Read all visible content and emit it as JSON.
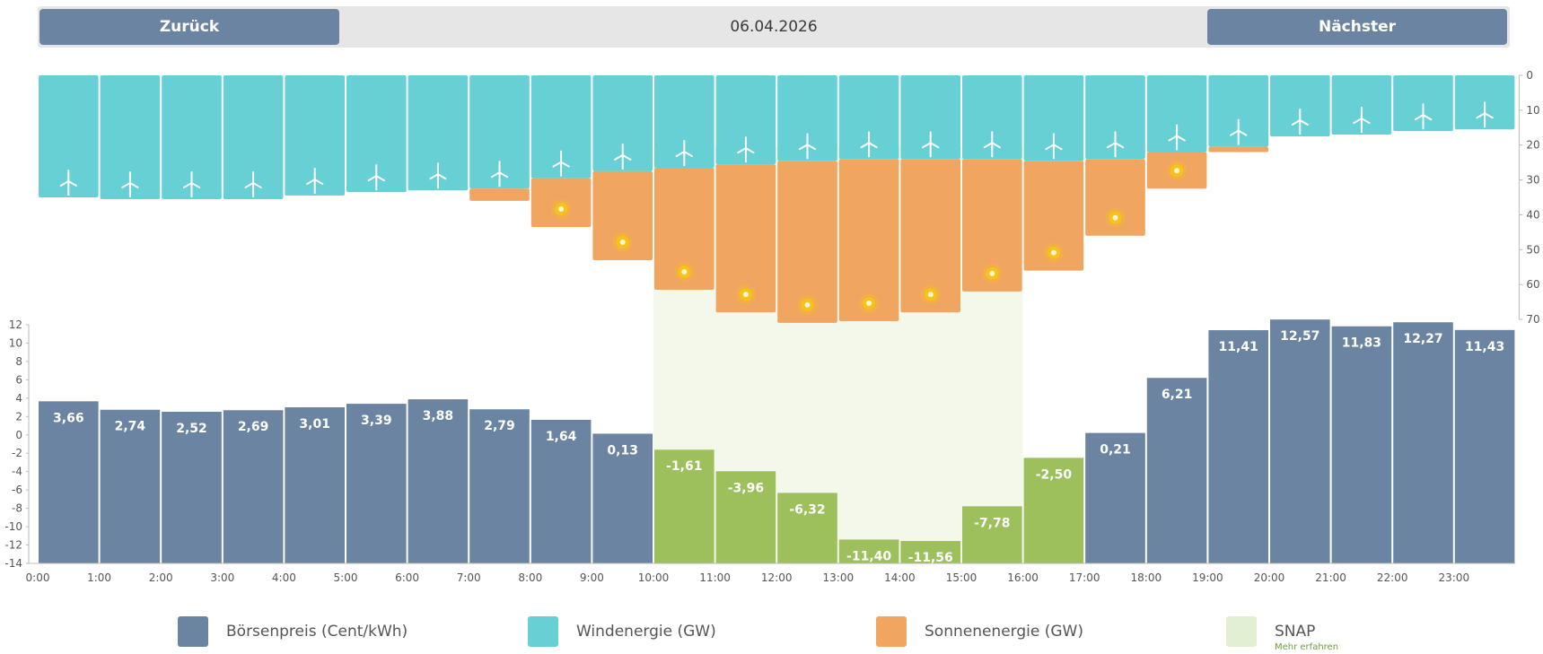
{
  "header": {
    "back_label": "Zurück",
    "next_label": "Nächster",
    "date": "06.04.2026"
  },
  "legend": [
    {
      "key": "price",
      "label": "Börsenpreis (Cent/kWh)",
      "color": "#6b84a1"
    },
    {
      "key": "wind",
      "label": "Windenergie (GW)",
      "color": "#66d0d4"
    },
    {
      "key": "solar",
      "label": "Sonnenenergie (GW)",
      "color": "#f0a561"
    },
    {
      "key": "snap",
      "label": "SNAP",
      "sublabel": "Mehr erfahren",
      "color": "#e3efd3"
    }
  ],
  "colors": {
    "price": "#6b84a1",
    "negative_price": "#9dc05c",
    "wind": "#66d0d4",
    "solar": "#f0a561",
    "snap_band": "#f3f8ea",
    "sun_icon": "#f6c21b"
  },
  "chart_data": {
    "type": "bar",
    "categories": [
      "0:00",
      "1:00",
      "2:00",
      "3:00",
      "4:00",
      "5:00",
      "6:00",
      "7:00",
      "8:00",
      "9:00",
      "10:00",
      "11:00",
      "12:00",
      "13:00",
      "14:00",
      "15:00",
      "16:00",
      "17:00",
      "18:00",
      "19:00",
      "20:00",
      "21:00",
      "22:00",
      "23:00"
    ],
    "energy_axis": {
      "ticks": [
        "0",
        "10",
        "20",
        "30",
        "40",
        "50",
        "60",
        "70"
      ],
      "ylim": [
        0,
        70
      ]
    },
    "price_axis": {
      "ticks": [
        "12",
        "10",
        "8",
        "6",
        "4",
        "2",
        "0",
        "-2",
        "-4",
        "-6",
        "-8",
        "-10",
        "-12",
        "-14"
      ],
      "ylim": [
        -14,
        12
      ]
    },
    "series": [
      {
        "name": "Windenergie (GW)",
        "values": [
          35,
          35.5,
          35.5,
          35.5,
          34.5,
          33.5,
          33,
          32.5,
          29.5,
          27.5,
          26.5,
          25.5,
          24.5,
          24,
          24,
          24,
          24.5,
          24,
          22,
          20.5,
          17.5,
          17,
          16,
          15.5
        ]
      },
      {
        "name": "Sonnenenergie (GW)",
        "values": [
          0,
          0,
          0,
          0,
          0,
          0,
          0,
          3.5,
          14,
          25.5,
          35,
          42.5,
          46.5,
          46.5,
          44,
          38,
          31.5,
          22,
          10.5,
          1.5,
          0,
          0,
          0,
          0
        ]
      },
      {
        "name": "Börsenpreis (Cent/kWh)",
        "values": [
          3.66,
          2.74,
          2.52,
          2.69,
          3.01,
          3.39,
          3.88,
          2.79,
          1.64,
          0.13,
          -1.61,
          -3.96,
          -6.32,
          -11.4,
          -11.56,
          -7.78,
          -2.5,
          0.21,
          6.21,
          11.41,
          12.57,
          11.83,
          12.27,
          11.43
        ],
        "labels": [
          "3,66",
          "2,74",
          "2,52",
          "2,69",
          "3,01",
          "3,39",
          "3,88",
          "2,79",
          "1,64",
          "0,13",
          "-1,61",
          "-3,96",
          "-6,32",
          "-11,40",
          "-11,56",
          "-7,78",
          "-2,50",
          "0,21",
          "6,21",
          "11,41",
          "12,57",
          "11,83",
          "12,27",
          "11,43"
        ]
      }
    ],
    "snap_range": [
      "10:00",
      "16:00"
    ]
  }
}
